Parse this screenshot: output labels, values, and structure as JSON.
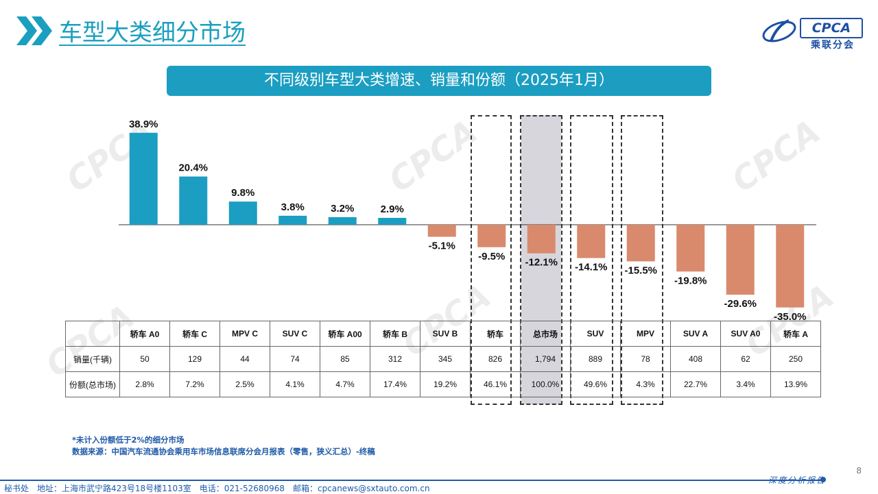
{
  "page_title": "车型大类细分市场",
  "logo": {
    "en": "CPCA",
    "cn": "乘联分会"
  },
  "banner": "不同级别车型大类增速、销量和份额（2025年1月）",
  "chart_data": {
    "type": "bar",
    "title": "不同级别车型大类增速、销量和份额（2025年1月）",
    "categories": [
      "轿车 A0",
      "轿车 C",
      "MPV C",
      "SUV C",
      "轿车 A00",
      "轿车 B",
      "SUV B",
      "轿车",
      "总市场",
      "SUV",
      "MPV",
      "SUV A",
      "SUV A0",
      "轿车 A"
    ],
    "values": [
      38.9,
      20.4,
      9.8,
      3.8,
      3.2,
      2.9,
      -5.1,
      -9.5,
      -12.1,
      -14.1,
      -15.5,
      -19.8,
      -29.6,
      -35.0
    ],
    "data_labels": [
      "38.9%",
      "20.4%",
      "9.8%",
      "3.8%",
      "3.2%",
      "2.9%",
      "-5.1%",
      "-9.5%",
      "-12.1%",
      "-14.1%",
      "-15.5%",
      "-19.8%",
      "-29.6%",
      "-35.0%"
    ],
    "colors": {
      "positive": "#1b9ec1",
      "negative": "#d98a6c"
    },
    "highlighted": [
      "轿车",
      "总市场",
      "SUV",
      "MPV"
    ],
    "shaded": [
      "总市场"
    ]
  },
  "table": {
    "rows": [
      {
        "label": "销量(千辆)",
        "values": [
          "50",
          "129",
          "44",
          "74",
          "85",
          "312",
          "345",
          "826",
          "1,794",
          "889",
          "78",
          "408",
          "62",
          "250"
        ]
      },
      {
        "label": "份额(总市场)",
        "values": [
          "2.8%",
          "7.2%",
          "2.5%",
          "4.1%",
          "4.7%",
          "17.4%",
          "19.2%",
          "46.1%",
          "100.0%",
          "49.6%",
          "4.3%",
          "22.7%",
          "3.4%",
          "13.9%"
        ]
      }
    ]
  },
  "notes": [
    "*未计入份额低于2%的细分市场",
    "数据来源：中国汽车流通协会乘用车市场信息联席分会月报表（零售，狭义汇总）-终稿"
  ],
  "page_number": "8",
  "footer": {
    "address": "秘书处　地址：上海市武宁路423号18号楼1103室　电话：021-52680968　邮箱：cpcanews@sxtauto.com.cn",
    "brand": "深度分析报告"
  }
}
